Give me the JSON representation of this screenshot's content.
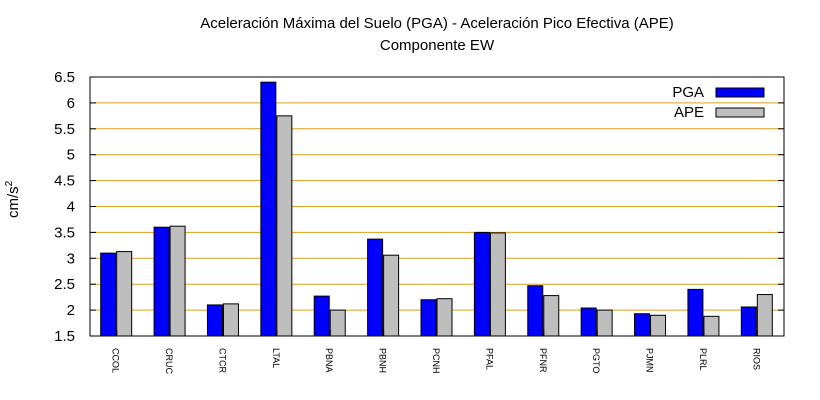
{
  "chart_data": {
    "type": "bar",
    "title_line1": "Aceleración Máxima del Suelo (PGA) -  Aceleración Pico Efectiva (APE)",
    "title_line2": "Componente EW",
    "ylabel_base": "cm/s",
    "ylabel_exp": "2",
    "xlabel": "",
    "ylim": [
      1.5,
      6.5
    ],
    "yticks": [
      "1.5",
      "2",
      "2.5",
      "3",
      "3.5",
      "4",
      "4.5",
      "5",
      "5.5",
      "6",
      "6.5"
    ],
    "grid": true,
    "legend_position": "top-right",
    "categories": [
      "CCOL",
      "CRUC",
      "CTCR",
      "LTAL",
      "PBNA",
      "PBNH",
      "PCNH",
      "PFAL",
      "PFNR",
      "PGTO",
      "PJMN",
      "PLRL",
      "RIOS"
    ],
    "series": [
      {
        "name": "PGA",
        "color": "#0000ff",
        "values": [
          3.1,
          3.6,
          2.1,
          6.4,
          2.27,
          3.37,
          2.2,
          3.5,
          2.47,
          2.04,
          1.93,
          2.4,
          2.06
        ]
      },
      {
        "name": "APE",
        "color": "#bebebe",
        "values": [
          3.13,
          3.62,
          2.12,
          5.75,
          2.0,
          3.06,
          2.22,
          3.49,
          2.28,
          2.0,
          1.9,
          1.88,
          2.3
        ]
      }
    ],
    "colors": {
      "grid": "#dca11d",
      "axis": "#000000"
    }
  }
}
